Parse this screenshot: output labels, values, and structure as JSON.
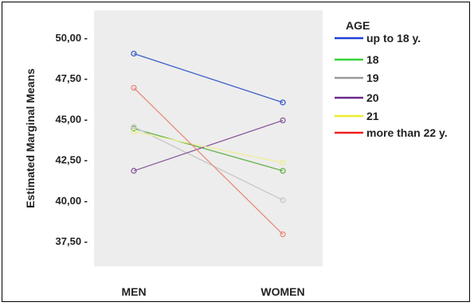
{
  "chart_data": {
    "type": "line",
    "title": "",
    "xlabel": "",
    "ylabel": "Estimated Marginal Means",
    "categories": [
      "MEN",
      "WOMEN"
    ],
    "ylim": [
      36.5,
      51.5
    ],
    "yticks": [
      37.5,
      40.0,
      42.5,
      45.0,
      47.5,
      50.0
    ],
    "ytick_labels": [
      "37,50 -",
      "40,00 -",
      "42,50 -",
      "45,00 -",
      "47,50 -",
      "50,00 -"
    ],
    "grid": false,
    "legend_title": "AGE",
    "legend_position": "right",
    "series": [
      {
        "name": "up to 18 y.",
        "color": "#3b5fc9",
        "legend_color": "#1f3fd6",
        "values": [
          49.0,
          46.0
        ]
      },
      {
        "name": "18",
        "color": "#66b24a",
        "legend_color": "#38d338",
        "values": [
          44.4,
          41.8
        ]
      },
      {
        "name": "19",
        "color": "#c8c8c8",
        "legend_color": "#9a9a9a",
        "values": [
          44.5,
          40.0
        ]
      },
      {
        "name": "20",
        "color": "#8a5a9a",
        "legend_color": "#6a2a8a",
        "values": [
          41.8,
          44.9
        ]
      },
      {
        "name": "21",
        "color": "#eeee9a",
        "legend_color": "#ecec2a",
        "values": [
          44.2,
          42.3
        ]
      },
      {
        "name": "more than 22 y.",
        "color": "#e88a7a",
        "legend_color": "#ee2020",
        "values": [
          46.9,
          37.9
        ]
      }
    ]
  }
}
